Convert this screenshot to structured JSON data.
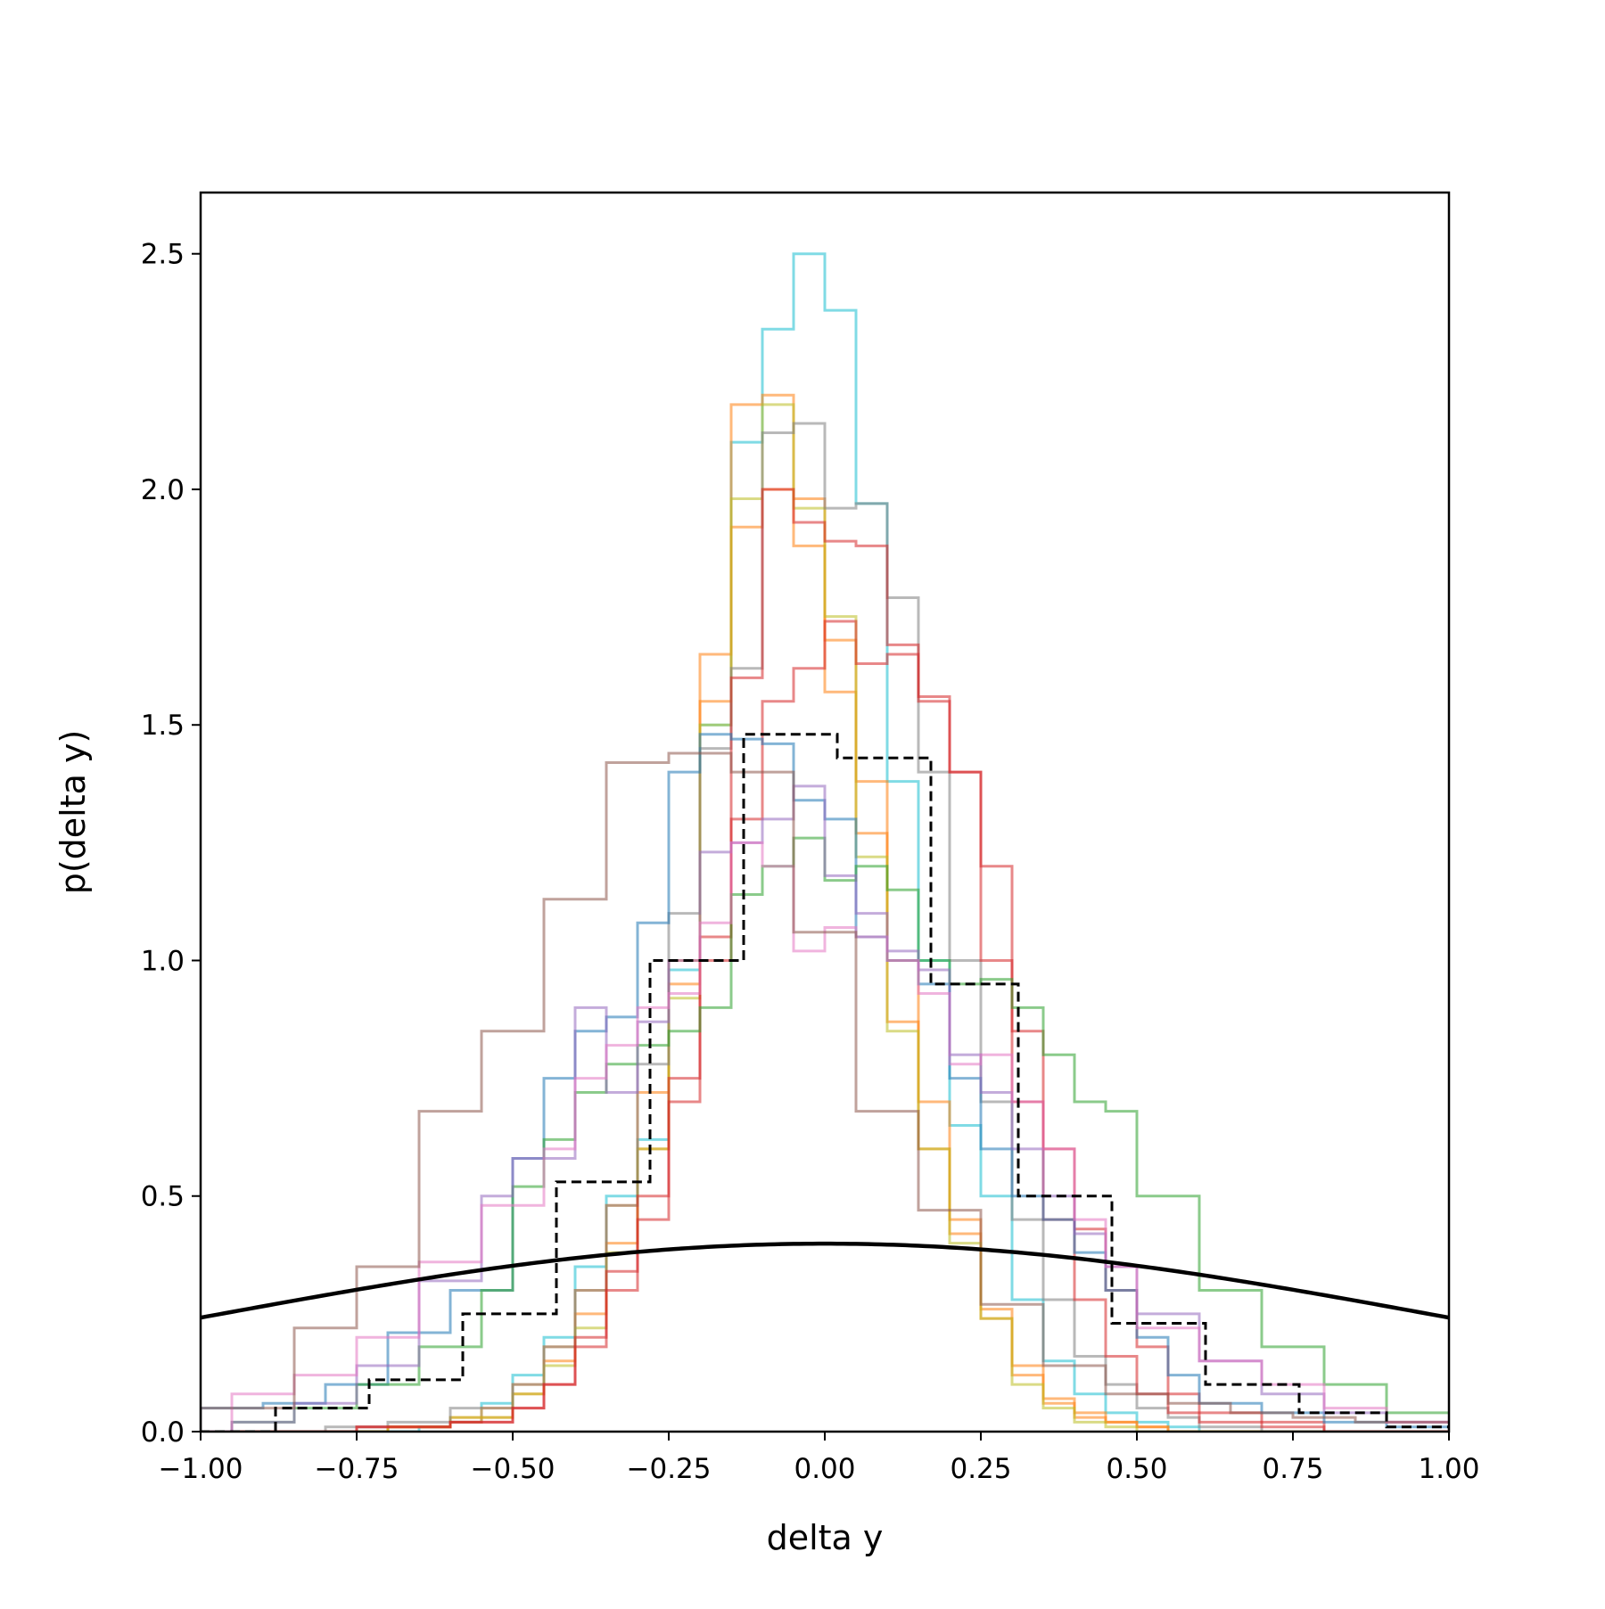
{
  "chart_data": {
    "type": "step-histogram",
    "title": "",
    "xlabel": "delta y",
    "ylabel": "p(delta y)",
    "xlim": [
      -1.0,
      1.0
    ],
    "ylim": [
      0,
      2.63
    ],
    "x_tick_values": [
      -1.0,
      -0.75,
      -0.5,
      -0.25,
      0.0,
      0.25,
      0.5,
      0.75,
      1.0
    ],
    "x_tick_labels": [
      "−1.00",
      "−0.75",
      "−0.50",
      "−0.25",
      "0.00",
      "0.25",
      "0.50",
      "0.75",
      "1.00"
    ],
    "y_tick_values": [
      0.0,
      0.5,
      1.0,
      1.5,
      2.0,
      2.5
    ],
    "y_tick_labels": [
      "0.0",
      "0.5",
      "1.0",
      "1.5",
      "2.0",
      "2.5"
    ],
    "grid": false,
    "legend": "none",
    "series": [
      {
        "color": "#17becf",
        "opacity": 0.55,
        "edges": [
          -1.05,
          -0.7,
          -0.65,
          -0.6,
          -0.55,
          -0.5,
          -0.45,
          -0.4,
          -0.35,
          -0.3,
          -0.25,
          -0.2,
          -0.15,
          -0.1,
          -0.05,
          0.0,
          0.05,
          0.1,
          0.15,
          0.2,
          0.25,
          0.3,
          0.35,
          0.4,
          0.45,
          0.5,
          0.55,
          0.6,
          0.65,
          1.05
        ],
        "heights": [
          0.0,
          0.0,
          0.01,
          0.02,
          0.06,
          0.12,
          0.2,
          0.35,
          0.5,
          0.62,
          0.98,
          1.5,
          2.1,
          2.34,
          2.5,
          2.38,
          1.97,
          1.38,
          1.0,
          0.65,
          0.5,
          0.28,
          0.15,
          0.08,
          0.04,
          0.02,
          0.01,
          0.0,
          0.0
        ]
      },
      {
        "color": "#ff7f0e",
        "opacity": 0.55,
        "edges": [
          -1.05,
          -0.7,
          -0.6,
          -0.5,
          -0.45,
          -0.4,
          -0.35,
          -0.3,
          -0.25,
          -0.2,
          -0.15,
          -0.1,
          -0.05,
          0.0,
          0.05,
          0.1,
          0.15,
          0.2,
          0.25,
          0.3,
          0.35,
          0.4,
          0.45,
          0.5,
          0.55,
          0.6,
          0.65,
          0.7,
          1.05
        ],
        "heights": [
          0.0,
          0.01,
          0.03,
          0.08,
          0.15,
          0.25,
          0.4,
          0.6,
          0.95,
          1.55,
          2.18,
          2.2,
          1.98,
          1.57,
          1.27,
          0.87,
          0.6,
          0.42,
          0.24,
          0.12,
          0.06,
          0.03,
          0.02,
          0.01,
          0.0,
          0.0,
          0.0,
          0.0
        ]
      },
      {
        "color": "#ff7f0e",
        "opacity": 0.55,
        "edges": [
          -1.05,
          -0.7,
          -0.6,
          -0.55,
          -0.5,
          -0.45,
          -0.4,
          -0.35,
          -0.3,
          -0.25,
          -0.2,
          -0.15,
          -0.1,
          -0.05,
          0.0,
          0.05,
          0.1,
          0.15,
          0.2,
          0.25,
          0.3,
          0.35,
          0.4,
          0.45,
          0.5,
          0.55,
          0.6,
          0.7,
          1.05
        ],
        "heights": [
          0.0,
          0.01,
          0.02,
          0.05,
          0.1,
          0.18,
          0.3,
          0.48,
          0.72,
          1.0,
          1.65,
          1.92,
          2.0,
          1.88,
          1.68,
          1.38,
          1.0,
          0.7,
          0.45,
          0.26,
          0.14,
          0.07,
          0.04,
          0.02,
          0.01,
          0.0,
          0.0,
          0.0
        ]
      },
      {
        "color": "#bcbd22",
        "opacity": 0.55,
        "edges": [
          -1.05,
          -0.7,
          -0.6,
          -0.5,
          -0.45,
          -0.4,
          -0.35,
          -0.3,
          -0.25,
          -0.2,
          -0.15,
          -0.1,
          -0.05,
          0.0,
          0.05,
          0.1,
          0.15,
          0.2,
          0.25,
          0.3,
          0.35,
          0.4,
          0.45,
          0.5,
          0.55,
          0.6,
          0.7,
          1.05
        ],
        "heights": [
          0.0,
          0.01,
          0.03,
          0.08,
          0.14,
          0.22,
          0.38,
          0.6,
          0.92,
          1.5,
          1.98,
          2.18,
          1.96,
          1.73,
          1.22,
          0.85,
          0.6,
          0.4,
          0.24,
          0.1,
          0.05,
          0.02,
          0.01,
          0.0,
          0.0,
          0.0,
          0.0
        ]
      },
      {
        "color": "#7f7f7f",
        "opacity": 0.55,
        "edges": [
          -1.05,
          -0.8,
          -0.7,
          -0.6,
          -0.5,
          -0.45,
          -0.4,
          -0.35,
          -0.3,
          -0.25,
          -0.2,
          -0.15,
          -0.1,
          -0.05,
          0.0,
          0.05,
          0.1,
          0.15,
          0.2,
          0.25,
          0.3,
          0.35,
          0.4,
          0.45,
          0.5,
          0.55,
          0.6,
          0.7,
          0.8,
          1.05
        ],
        "heights": [
          0.0,
          0.01,
          0.02,
          0.05,
          0.1,
          0.18,
          0.3,
          0.48,
          0.78,
          1.1,
          1.45,
          1.62,
          2.12,
          2.14,
          1.96,
          1.97,
          1.77,
          1.4,
          1.0,
          0.7,
          0.45,
          0.28,
          0.16,
          0.1,
          0.05,
          0.03,
          0.01,
          0.0,
          0.0
        ]
      },
      {
        "color": "#d62728",
        "opacity": 0.55,
        "edges": [
          -1.05,
          -0.75,
          -0.6,
          -0.5,
          -0.45,
          -0.4,
          -0.35,
          -0.3,
          -0.25,
          -0.2,
          -0.15,
          -0.1,
          -0.05,
          0.0,
          0.05,
          0.1,
          0.15,
          0.2,
          0.25,
          0.3,
          0.35,
          0.4,
          0.45,
          0.5,
          0.55,
          0.6,
          0.7,
          0.8,
          1.05
        ],
        "heights": [
          0.0,
          0.01,
          0.02,
          0.05,
          0.1,
          0.18,
          0.3,
          0.45,
          0.7,
          1.05,
          1.6,
          2.0,
          1.93,
          1.89,
          1.88,
          1.67,
          1.56,
          1.4,
          1.0,
          0.7,
          0.45,
          0.28,
          0.16,
          0.08,
          0.04,
          0.02,
          0.01,
          0.0
        ]
      },
      {
        "color": "#d62728",
        "opacity": 0.55,
        "edges": [
          -1.05,
          -0.75,
          -0.6,
          -0.5,
          -0.45,
          -0.4,
          -0.35,
          -0.3,
          -0.25,
          -0.2,
          -0.15,
          -0.1,
          -0.05,
          0.0,
          0.05,
          0.1,
          0.15,
          0.2,
          0.25,
          0.3,
          0.35,
          0.4,
          0.45,
          0.5,
          0.55,
          0.6,
          0.7,
          0.8,
          1.05
        ],
        "heights": [
          0.0,
          0.01,
          0.02,
          0.05,
          0.1,
          0.2,
          0.34,
          0.5,
          0.75,
          1.0,
          1.3,
          1.55,
          1.62,
          1.72,
          1.63,
          1.65,
          1.55,
          1.4,
          1.2,
          0.85,
          0.6,
          0.43,
          0.3,
          0.18,
          0.08,
          0.04,
          0.02,
          0.0
        ]
      },
      {
        "color": "#1f77b4",
        "opacity": 0.55,
        "edges": [
          -1.05,
          -1.0,
          -0.9,
          -0.8,
          -0.7,
          -0.6,
          -0.5,
          -0.45,
          -0.4,
          -0.35,
          -0.3,
          -0.25,
          -0.2,
          -0.15,
          -0.1,
          -0.05,
          0.0,
          0.05,
          0.1,
          0.15,
          0.2,
          0.25,
          0.3,
          0.35,
          0.4,
          0.45,
          0.5,
          0.55,
          0.6,
          0.7,
          0.8,
          0.9,
          1.05
        ],
        "heights": [
          0.0,
          0.05,
          0.06,
          0.1,
          0.21,
          0.3,
          0.58,
          0.75,
          0.85,
          0.88,
          1.08,
          1.4,
          1.48,
          1.47,
          1.46,
          1.34,
          1.3,
          1.05,
          1.0,
          0.95,
          0.75,
          0.6,
          0.5,
          0.45,
          0.38,
          0.3,
          0.2,
          0.12,
          0.06,
          0.04,
          0.02,
          0.01
        ]
      },
      {
        "color": "#2ca02c",
        "opacity": 0.55,
        "edges": [
          -1.05,
          -0.95,
          -0.85,
          -0.75,
          -0.65,
          -0.55,
          -0.5,
          -0.45,
          -0.4,
          -0.35,
          -0.3,
          -0.25,
          -0.2,
          -0.15,
          -0.1,
          -0.05,
          0.0,
          0.05,
          0.1,
          0.15,
          0.2,
          0.25,
          0.3,
          0.35,
          0.4,
          0.45,
          0.5,
          0.6,
          0.7,
          0.8,
          0.9,
          1.05
        ],
        "heights": [
          0.0,
          0.02,
          0.05,
          0.1,
          0.18,
          0.3,
          0.52,
          0.62,
          0.72,
          0.78,
          0.82,
          0.85,
          0.9,
          1.14,
          1.2,
          1.26,
          1.17,
          1.2,
          1.15,
          1.0,
          0.95,
          0.96,
          0.9,
          0.8,
          0.7,
          0.68,
          0.5,
          0.3,
          0.18,
          0.1,
          0.04
        ]
      },
      {
        "color": "#9467bd",
        "opacity": 0.55,
        "edges": [
          -1.05,
          -0.95,
          -0.85,
          -0.75,
          -0.65,
          -0.55,
          -0.5,
          -0.4,
          -0.35,
          -0.3,
          -0.25,
          -0.2,
          -0.15,
          -0.1,
          -0.05,
          0.0,
          0.05,
          0.1,
          0.15,
          0.2,
          0.25,
          0.3,
          0.35,
          0.4,
          0.45,
          0.5,
          0.6,
          0.7,
          0.8,
          0.9,
          1.05
        ],
        "heights": [
          0.0,
          0.02,
          0.06,
          0.14,
          0.32,
          0.5,
          0.58,
          0.9,
          0.72,
          0.87,
          1.0,
          1.23,
          1.25,
          1.3,
          1.37,
          1.18,
          1.1,
          1.02,
          0.98,
          0.8,
          0.72,
          0.6,
          0.5,
          0.42,
          0.35,
          0.25,
          0.15,
          0.08,
          0.04,
          0.02
        ]
      },
      {
        "color": "#e377c2",
        "opacity": 0.55,
        "edges": [
          -1.05,
          -0.95,
          -0.85,
          -0.75,
          -0.65,
          -0.55,
          -0.45,
          -0.4,
          -0.35,
          -0.3,
          -0.25,
          -0.2,
          -0.15,
          -0.1,
          -0.05,
          0.0,
          0.05,
          0.1,
          0.15,
          0.2,
          0.25,
          0.3,
          0.35,
          0.4,
          0.45,
          0.5,
          0.6,
          0.7,
          0.8,
          0.9,
          1.05
        ],
        "heights": [
          0.0,
          0.08,
          0.12,
          0.2,
          0.36,
          0.48,
          0.6,
          0.75,
          0.82,
          0.9,
          0.93,
          1.08,
          1.25,
          1.2,
          1.02,
          1.07,
          1.05,
          1.0,
          0.93,
          0.78,
          0.8,
          0.7,
          0.6,
          0.45,
          0.35,
          0.22,
          0.15,
          0.1,
          0.05,
          0.02
        ]
      },
      {
        "color": "#8c564b",
        "opacity": 0.55,
        "edges": [
          -1.05,
          -1.0,
          -0.85,
          -0.75,
          -0.65,
          -0.55,
          -0.45,
          -0.35,
          -0.25,
          -0.15,
          -0.05,
          0.05,
          0.15,
          0.25,
          0.35,
          0.45,
          0.55,
          0.65,
          0.75,
          0.85,
          1.05
        ],
        "heights": [
          0.0,
          0.05,
          0.22,
          0.35,
          0.68,
          0.85,
          1.13,
          1.42,
          1.44,
          1.4,
          1.06,
          0.68,
          0.47,
          0.27,
          0.14,
          0.08,
          0.06,
          0.04,
          0.03,
          0.02
        ]
      }
    ],
    "reference_histogram": {
      "style": "dashed",
      "color": "#000000",
      "edges": [
        -1.05,
        -0.88,
        -0.73,
        -0.58,
        -0.43,
        -0.28,
        -0.13,
        0.02,
        0.17,
        0.31,
        0.46,
        0.61,
        0.76,
        0.9,
        1.05
      ],
      "heights": [
        0.0,
        0.05,
        0.11,
        0.25,
        0.53,
        1.0,
        1.48,
        1.43,
        0.95,
        0.5,
        0.23,
        0.1,
        0.04,
        0.01
      ]
    },
    "reference_curve": {
      "type": "gaussian",
      "mean": 0.0,
      "std": 1.0,
      "color": "#000000"
    }
  }
}
